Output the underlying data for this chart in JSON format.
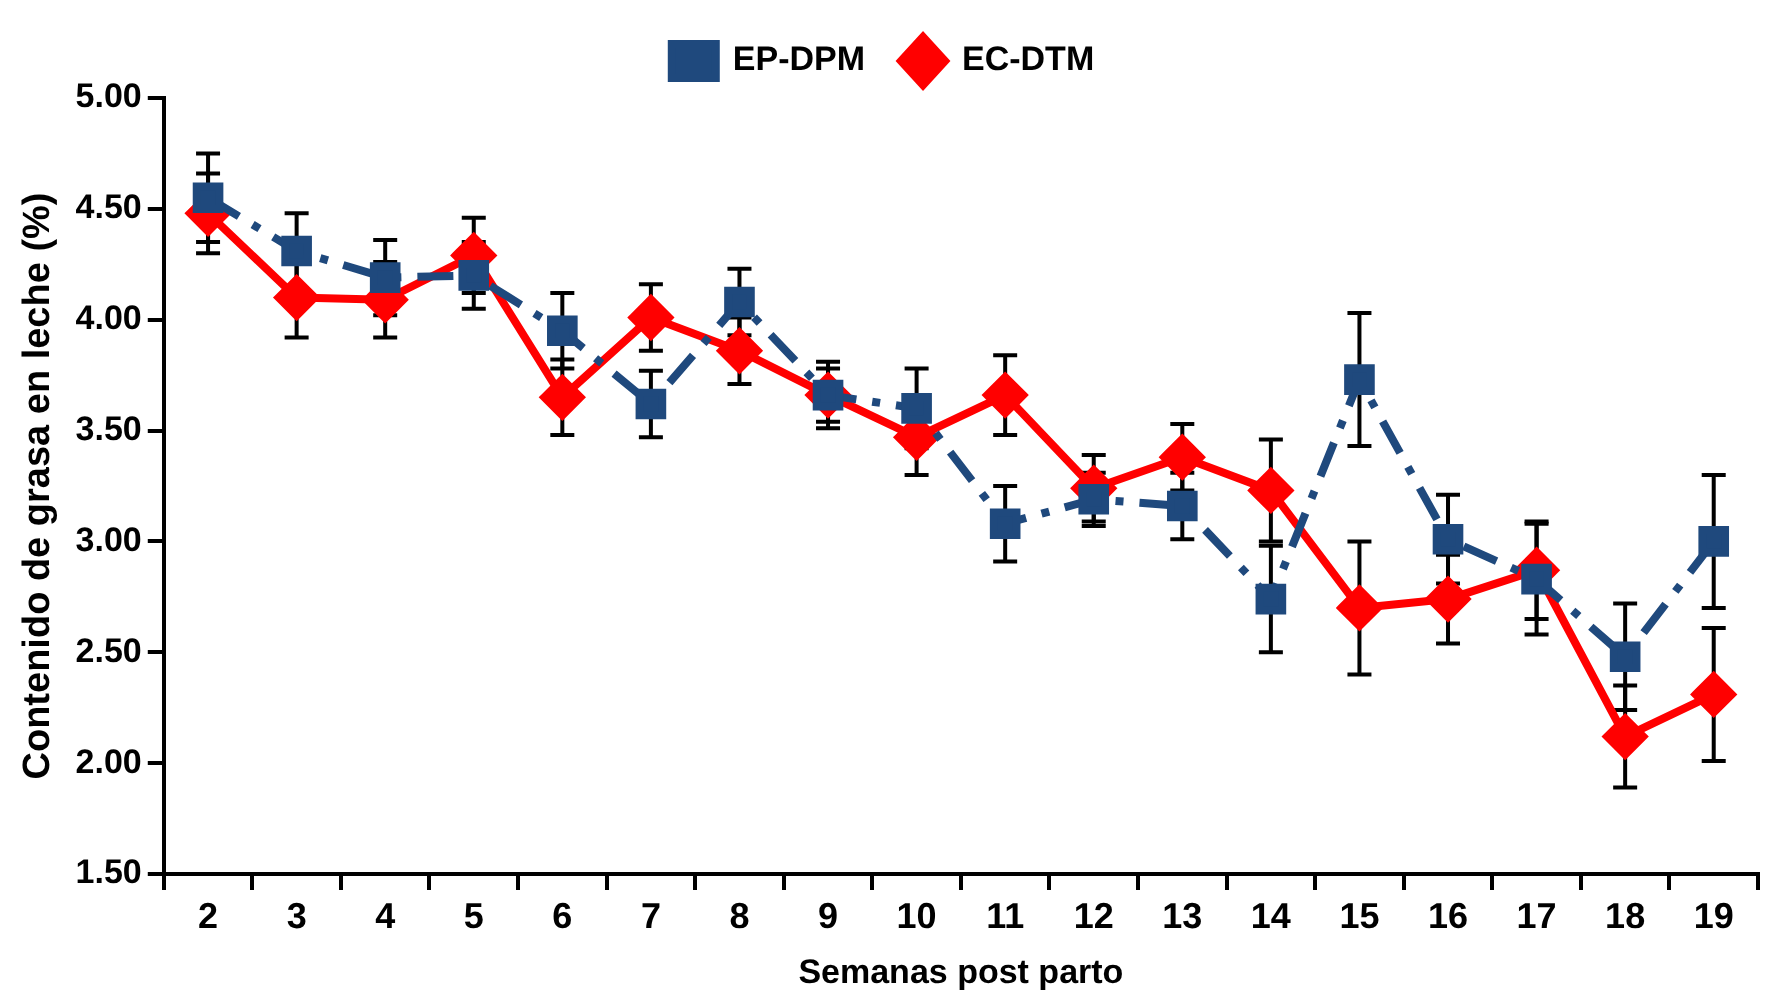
{
  "chart_data": {
    "type": "line",
    "xlabel": "Semanas post parto",
    "ylabel": "Contenido de grasa en leche (%)",
    "categories": [
      "2",
      "3",
      "4",
      "5",
      "6",
      "7",
      "8",
      "9",
      "10",
      "11",
      "12",
      "13",
      "14",
      "15",
      "16",
      "17",
      "18",
      "19"
    ],
    "series": [
      {
        "name": "EP-DPM",
        "color": "#1f497d",
        "marker": "square",
        "line_style": "dashed",
        "values": [
          4.55,
          4.31,
          4.19,
          4.2,
          3.95,
          3.62,
          4.08,
          3.66,
          3.6,
          3.08,
          3.19,
          3.16,
          2.74,
          3.73,
          3.01,
          2.83,
          2.48,
          3.0
        ],
        "errors": [
          0.2,
          0.17,
          0.17,
          0.15,
          0.17,
          0.15,
          0.15,
          0.12,
          0.18,
          0.17,
          0.12,
          0.15,
          0.24,
          0.3,
          0.2,
          0.25,
          0.24,
          0.3
        ]
      },
      {
        "name": "EC-DTM",
        "color": "#ff0000",
        "marker": "diamond",
        "line_style": "solid",
        "values": [
          4.48,
          4.1,
          4.09,
          4.29,
          3.65,
          4.01,
          3.86,
          3.66,
          3.47,
          3.66,
          3.24,
          3.38,
          3.23,
          2.7,
          2.74,
          2.87,
          2.12,
          2.31
        ],
        "errors": [
          0.18,
          0.18,
          0.17,
          0.17,
          0.17,
          0.15,
          0.15,
          0.15,
          0.17,
          0.18,
          0.15,
          0.15,
          0.23,
          0.3,
          0.2,
          0.22,
          0.23,
          0.3
        ]
      }
    ],
    "ylim": [
      1.5,
      5
    ],
    "yticks": [
      {
        "value": 1.5,
        "label": "1.50"
      },
      {
        "value": 2,
        "label": "2.00"
      },
      {
        "value": 2.5,
        "label": "2.50"
      },
      {
        "value": 3,
        "label": "3.00"
      },
      {
        "value": 3.5,
        "label": "3.50"
      },
      {
        "value": 4,
        "label": "4.00"
      },
      {
        "value": 4.5,
        "label": "4.50"
      },
      {
        "value": 5,
        "label": "5.00"
      }
    ],
    "grid": false,
    "legend": "top"
  }
}
